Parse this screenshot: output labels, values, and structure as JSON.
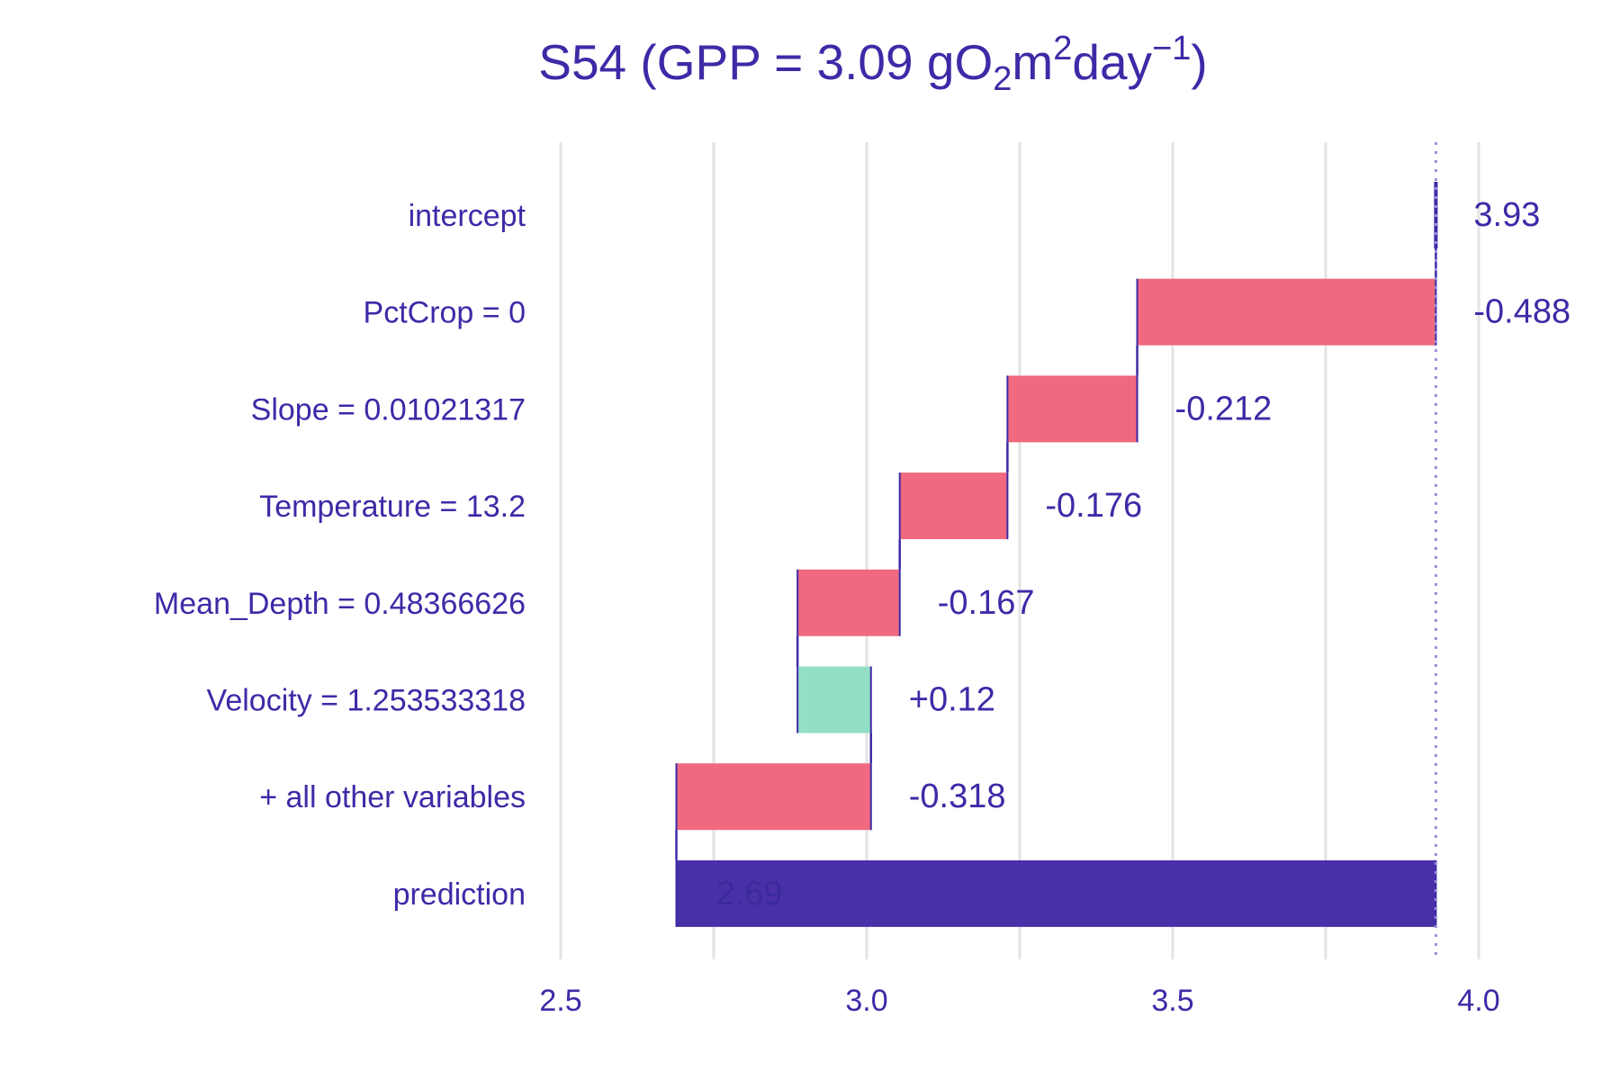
{
  "chart_data": {
    "type": "bar",
    "subtype": "waterfall (break-down)",
    "title": {
      "prefix": "S54 (GPP = 3.09 gO",
      "sub": "2",
      "middle": "m",
      "sup1": "2",
      "after": "day",
      "sup2": "−1",
      "suffix": ")"
    },
    "xlabel": "",
    "ylabel": "",
    "xlim": [
      2.5,
      4.0
    ],
    "x_ticks": [
      "2.5",
      "3.0",
      "3.5",
      "4.0"
    ],
    "grid": "vertical gridlines",
    "legend": "none",
    "bars": [
      {
        "label": "intercept",
        "start": 3.93,
        "end": 3.93,
        "value_label": "3.93",
        "kind": "intercept"
      },
      {
        "label": "PctCrop = 0",
        "start": 3.93,
        "end": 3.442,
        "value_label": "-0.488",
        "kind": "negative"
      },
      {
        "label": "Slope = 0.01021317",
        "start": 3.442,
        "end": 3.23,
        "value_label": "-0.212",
        "kind": "negative"
      },
      {
        "label": "Temperature = 13.2",
        "start": 3.23,
        "end": 3.054,
        "value_label": "-0.176",
        "kind": "negative"
      },
      {
        "label": "Mean_Depth = 0.48366626",
        "start": 3.054,
        "end": 2.887,
        "value_label": "-0.167",
        "kind": "negative"
      },
      {
        "label": "Velocity = 1.253533318",
        "start": 2.887,
        "end": 3.007,
        "value_label": "+0.12",
        "kind": "positive"
      },
      {
        "label": "+ all other variables",
        "start": 3.007,
        "end": 2.689,
        "value_label": "-0.318",
        "kind": "negative"
      },
      {
        "label": "prediction",
        "start": 3.93,
        "end": 2.689,
        "value_label": "2.69",
        "kind": "prediction"
      }
    ],
    "reference_line_x": 3.93,
    "colors": {
      "text": "#3d2aa7",
      "negative": "#f0697e",
      "positive": "#93dfc6",
      "prediction": "#4a30a8",
      "connector": "#3d2aa7",
      "grid": "#e3e3e3",
      "reference_line": "#9b8fd8"
    }
  }
}
